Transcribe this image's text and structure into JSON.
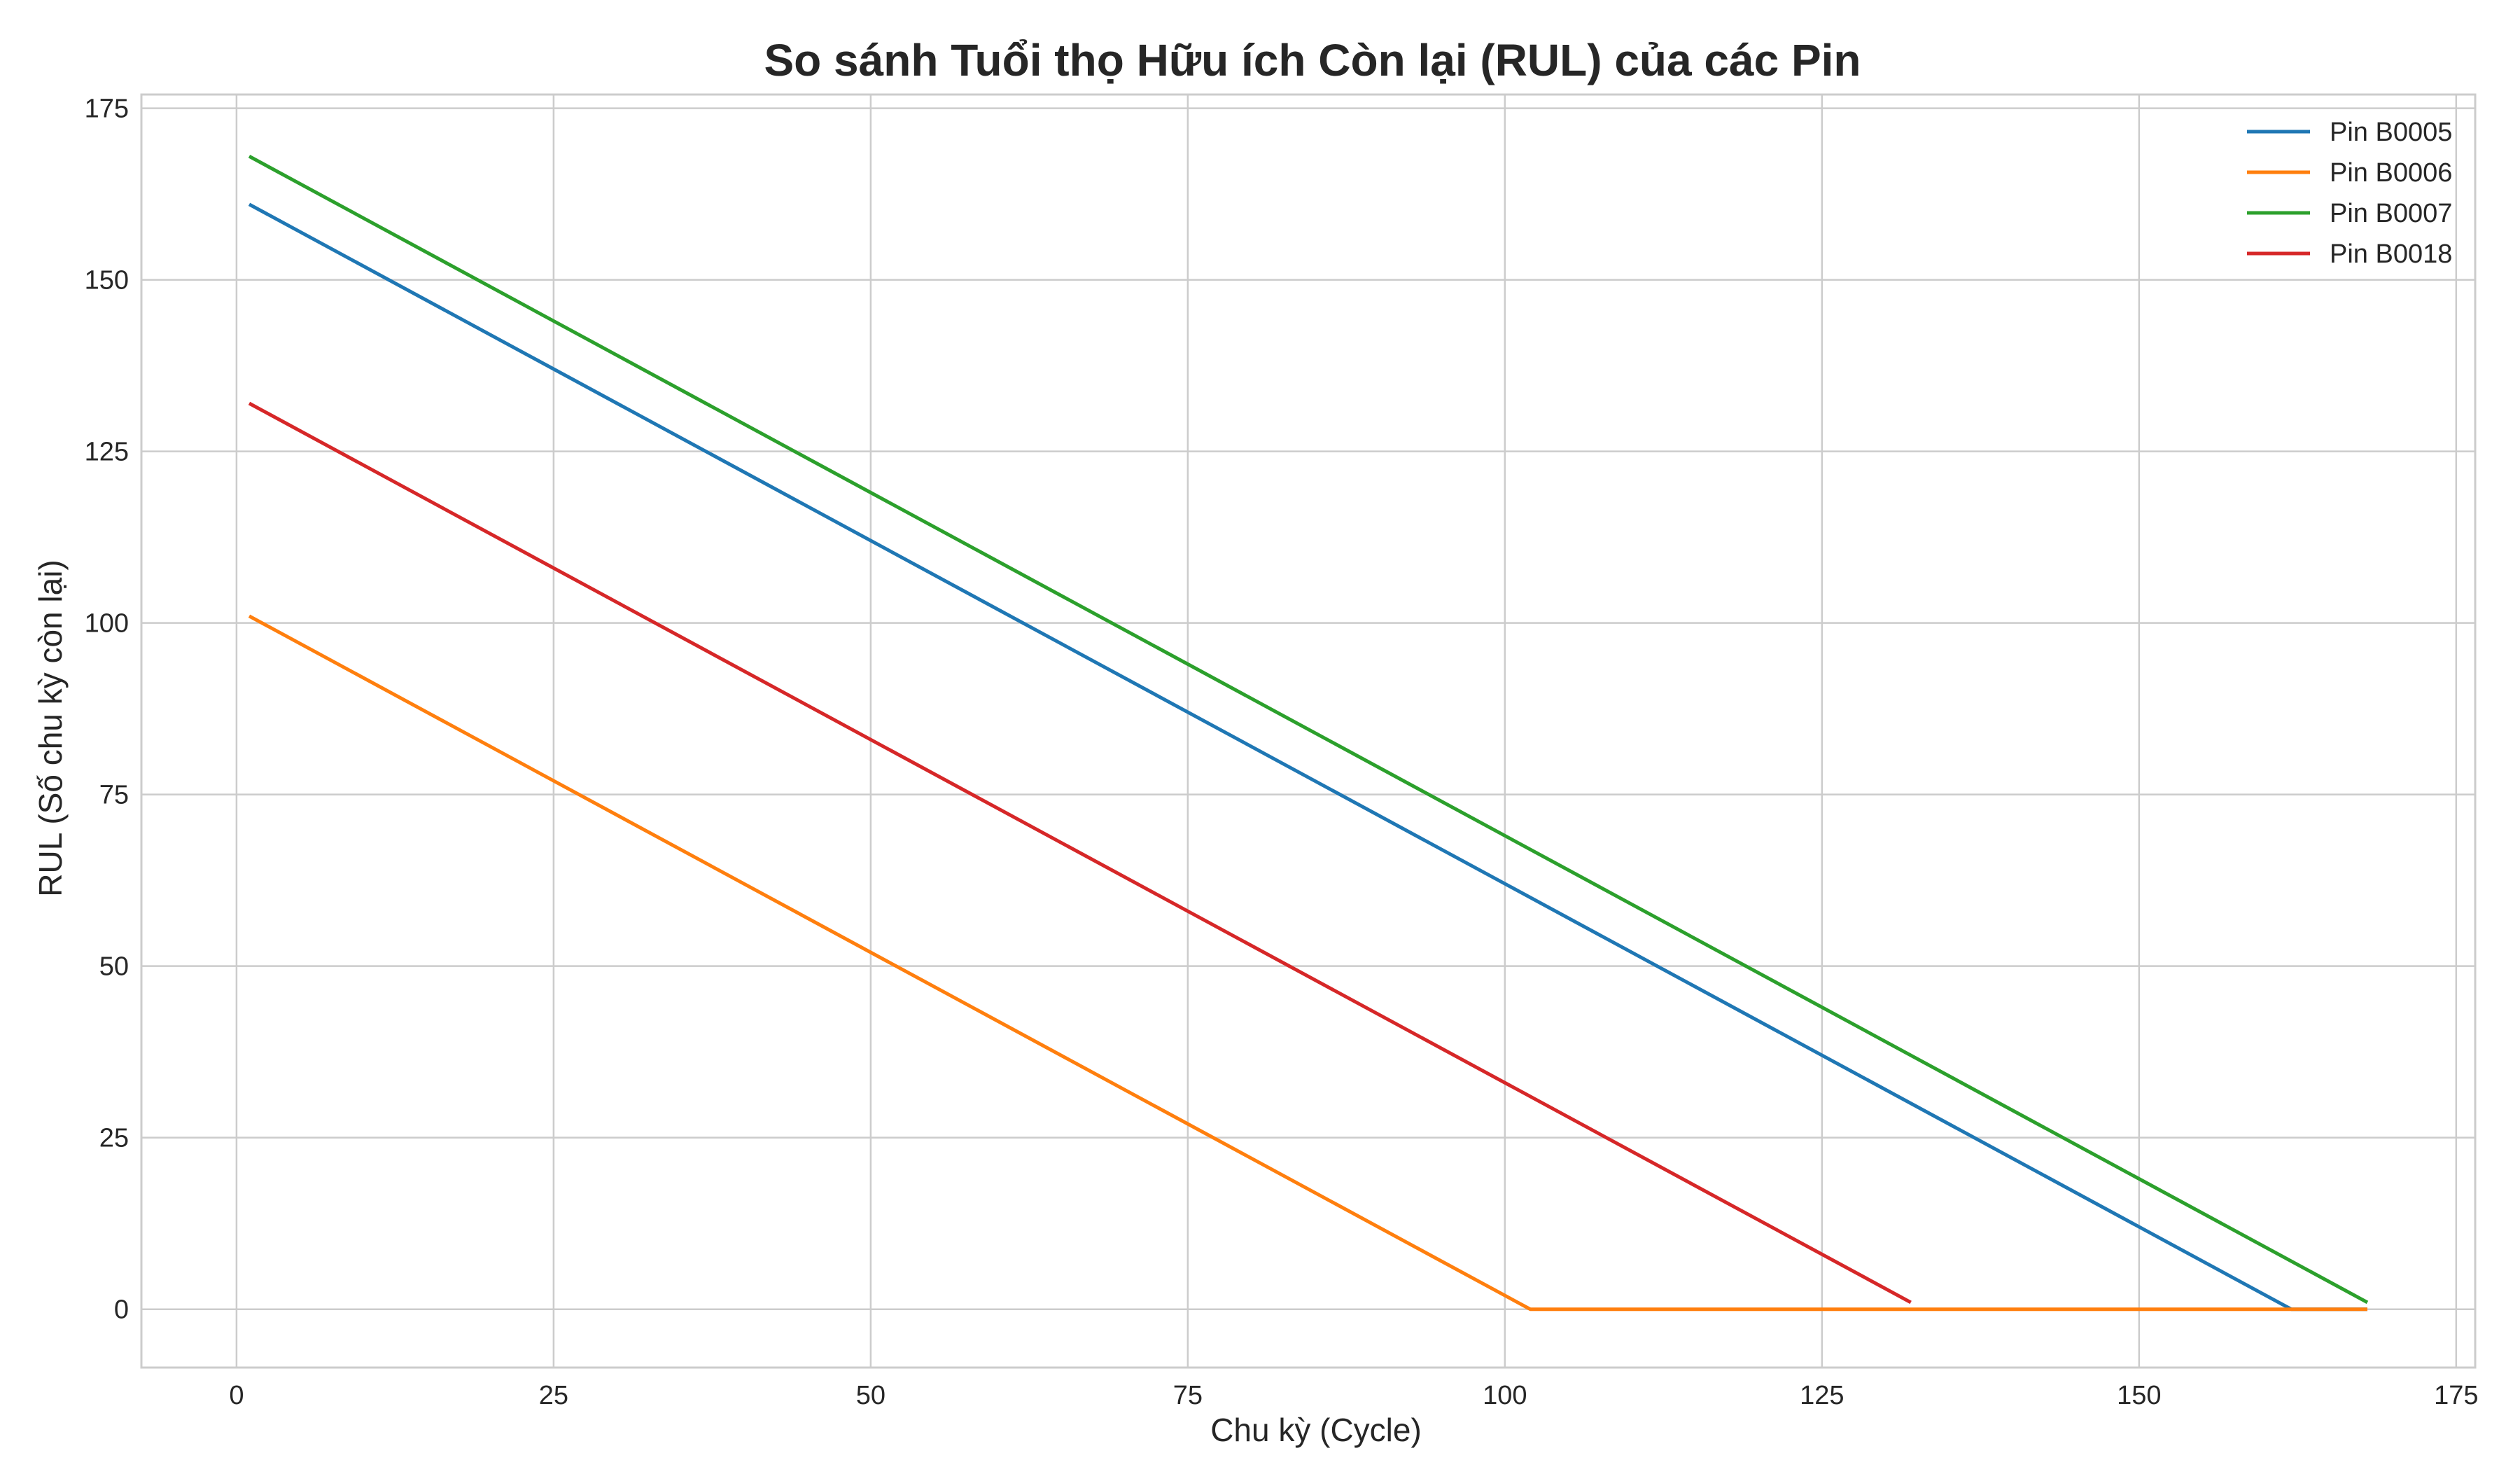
{
  "chart_data": {
    "type": "line",
    "title": "So sánh Tuổi thọ Hữu ích Còn lại (RUL) của các Pin",
    "xlabel": "Chu kỳ (Cycle)",
    "ylabel": "RUL (Số chu kỳ còn lại)",
    "xlim": [
      -7.5,
      176.5
    ],
    "ylim": [
      -8.5,
      177
    ],
    "xticks": [
      0,
      25,
      50,
      75,
      100,
      125,
      150,
      175
    ],
    "yticks": [
      0,
      25,
      50,
      75,
      100,
      125,
      150,
      175
    ],
    "xtick_labels": [
      "0",
      "25",
      "50",
      "75",
      "100",
      "125",
      "150",
      "175"
    ],
    "ytick_labels": [
      "0",
      "25",
      "50",
      "75",
      "100",
      "125",
      "150",
      "175"
    ],
    "grid": true,
    "legend_position": "top-right",
    "series": [
      {
        "name": "Pin B0005",
        "color": "#1f77b4",
        "points": [
          [
            1,
            161
          ],
          [
            162,
            0
          ],
          [
            168,
            0
          ]
        ]
      },
      {
        "name": "Pin B0006",
        "color": "#ff7f0e",
        "points": [
          [
            1,
            101
          ],
          [
            102,
            0
          ],
          [
            168,
            0
          ]
        ]
      },
      {
        "name": "Pin B0007",
        "color": "#2ca02c",
        "points": [
          [
            1,
            168
          ],
          [
            168,
            1
          ]
        ]
      },
      {
        "name": "Pin B0018",
        "color": "#d62728",
        "points": [
          [
            1,
            132
          ],
          [
            132,
            1
          ]
        ]
      }
    ]
  }
}
